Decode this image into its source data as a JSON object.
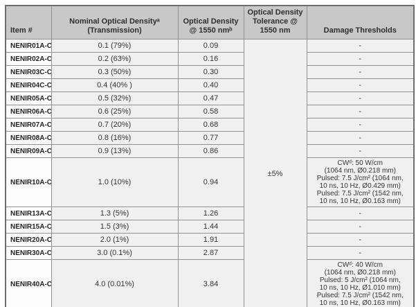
{
  "table": {
    "columns": [
      {
        "label": "Item #"
      },
      {
        "label": "Nominal Optical Densityᵃ\n(Transmission)"
      },
      {
        "label": "Optical Density\n@ 1550 nmᵇ"
      },
      {
        "label": "Optical Density\nTolerance @\n1550 nm"
      },
      {
        "label": "Damage Thresholds"
      }
    ],
    "tolerance_value": "±5%",
    "rows": [
      {
        "item": "NENIR01A-C",
        "nominal": "0.1 (79%)",
        "od": "0.09",
        "damage": "-"
      },
      {
        "item": "NENIR02A-C",
        "nominal": "0.2 (63%)",
        "od": "0.16",
        "damage": "-"
      },
      {
        "item": "NENIR03C-C",
        "nominal": "0.3 (50%)",
        "od": "0.30",
        "damage": "-"
      },
      {
        "item": "NENIR04C-C",
        "nominal": "0.4 (40% )",
        "od": "0.40",
        "damage": "-"
      },
      {
        "item": "NENIR05A-C",
        "nominal": "0.5 (32%)",
        "od": "0.47",
        "damage": "-"
      },
      {
        "item": "NENIR06A-C",
        "nominal": "0.6 (25%)",
        "od": "0.58",
        "damage": "-"
      },
      {
        "item": "NENIR07A-C",
        "nominal": "0.7 (20%)",
        "od": "0.68",
        "damage": "-"
      },
      {
        "item": "NENIR08A-C",
        "nominal": "0.8 (16%)",
        "od": "0.77",
        "damage": "-"
      },
      {
        "item": "NENIR09A-C",
        "nominal": "0.9 (13%)",
        "od": "0.86",
        "damage": "-"
      },
      {
        "item": "NENIR10A-C",
        "nominal": "1.0 (10%)",
        "od": "0.94",
        "damage": "CWᵈ: 50 W/cm\n(1064 nm, Ø0.218 mm)\nPulsed: 7.5 J/cm² (1064 nm,\n10 ns, 10 Hz, Ø0.429 mm)\nPulsed: 7.5 J/cm² (1542 nm,\n10 ns, 10 Hz, Ø0.163 mm)"
      },
      {
        "item": "NENIR13A-C",
        "nominal": "1.3 (5%)",
        "od": "1.26",
        "damage": "-"
      },
      {
        "item": "NENIR15A-C",
        "nominal": "1.5 (3%)",
        "od": "1.44",
        "damage": "-"
      },
      {
        "item": "NENIR20A-C",
        "nominal": "2.0 (1%)",
        "od": "1.91",
        "damage": "-"
      },
      {
        "item": "NENIR30A-C",
        "nominal": "3.0 (0.1%)",
        "od": "2.87",
        "damage": "-"
      },
      {
        "item": "NENIR40A-C",
        "nominal": "4.0 (0.01%)",
        "od": "3.84",
        "damage": "CWᵈ: 40 W/cm\n(1064 nm, Ø0.218 mm)\nPulsed: 5 J/cm² (1064 nm,\n10 ns, 10 Hz, Ø1.010 mm)\nPulsed: 7.5 J/cm² (1542 nm,\n10 ns, 10 Hz, Ø0.163 mm)"
      }
    ],
    "colors": {
      "header_bg": "#c8c8c8",
      "cell_bg": "#f0f0f0",
      "item_bg": "#fdfdfd",
      "border": "#919191",
      "outer_border": "#6e6e6e",
      "text": "#333333"
    }
  },
  "chart_data": {
    "type": "table",
    "title": "",
    "columns": [
      "Item #",
      "Nominal Optical Densityᵃ (Transmission)",
      "Optical Density @ 1550 nmᵇ",
      "Optical Density Tolerance @ 1550 nm",
      "Damage Thresholds"
    ],
    "tolerance_all_rows": "±5%",
    "items": [
      "NENIR01A-C",
      "NENIR02A-C",
      "NENIR03C-C",
      "NENIR04C-C",
      "NENIR05A-C",
      "NENIR06A-C",
      "NENIR07A-C",
      "NENIR08A-C",
      "NENIR09A-C",
      "NENIR10A-C",
      "NENIR13A-C",
      "NENIR15A-C",
      "NENIR20A-C",
      "NENIR30A-C",
      "NENIR40A-C"
    ],
    "nominal_od": [
      0.1,
      0.2,
      0.3,
      0.4,
      0.5,
      0.6,
      0.7,
      0.8,
      0.9,
      1.0,
      1.3,
      1.5,
      2.0,
      3.0,
      4.0
    ],
    "transmission_pct": [
      79,
      63,
      50,
      40,
      32,
      25,
      20,
      16,
      13,
      10,
      5,
      3,
      1,
      0.1,
      0.01
    ],
    "od_at_1550nm": [
      0.09,
      0.16,
      0.3,
      0.4,
      0.47,
      0.58,
      0.68,
      0.77,
      0.86,
      0.94,
      1.26,
      1.44,
      1.91,
      2.87,
      3.84
    ]
  }
}
